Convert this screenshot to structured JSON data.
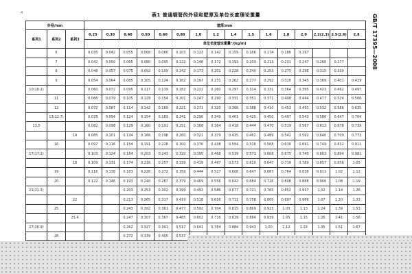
{
  "page_number": "4",
  "title": "表1  普通钢管的外径和壁厚及单位长度理论重量",
  "side_label": "GB/T 17395—2008",
  "headers": {
    "outer_diameter": "外径/mm",
    "series": [
      "系列1",
      "系列2",
      "系列3"
    ],
    "wall_thickness": "壁厚/mm",
    "unit_weight": "单位长度理论重量ᵃ/(kg/m)"
  },
  "thickness_columns": [
    "0.25",
    "0.30",
    "0.40",
    "0.50",
    "0.60",
    "0.80",
    "1.0",
    "1.2",
    "1.4",
    "1.5",
    "1.6",
    "1.8",
    "2.0",
    "2.2(2.3)",
    "2.5(2.6)",
    "2.8"
  ],
  "rows": [
    {
      "s1": "",
      "s2": "6",
      "s3": "",
      "v": [
        "0.035",
        "0.042",
        "0.055",
        "0.068",
        "0.080",
        "0.103",
        "0.123",
        "0.142",
        "0.159",
        "0.166",
        "0.174",
        "0.186",
        "0.197",
        "",
        "",
        ""
      ]
    },
    {
      "s1": "",
      "s2": "7",
      "s3": "",
      "v": [
        "0.042",
        "0.050",
        "0.065",
        "0.080",
        "0.095",
        "0.122",
        "0.148",
        "0.172",
        "0.193",
        "0.203",
        "0.213",
        "0.231",
        "0.247",
        "0.260",
        "0.277",
        ""
      ]
    },
    {
      "s1": "",
      "s2": "8",
      "s3": "",
      "v": [
        "0.048",
        "0.057",
        "0.075",
        "0.092",
        "0.109",
        "0.142",
        "0.173",
        "0.201",
        "0.228",
        "0.240",
        "0.253",
        "0.275",
        "0.296",
        "0.315",
        "0.339",
        ""
      ]
    },
    {
      "s1": "",
      "s2": "9",
      "s3": "",
      "v": [
        "0.054",
        "0.064",
        "0.085",
        "0.105",
        "0.124",
        "0.162",
        "0.197",
        "0.231",
        "0.262",
        "0.277",
        "0.292",
        "0.320",
        "0.345",
        "0.369",
        "0.401",
        "0.429"
      ]
    },
    {
      "s1": "10(10.2)",
      "s2": "",
      "s3": "",
      "v": [
        "0.060",
        "0.072",
        "0.095",
        "0.117",
        "0.139",
        "0.182",
        "0.222",
        "0.260",
        "0.297",
        "0.314",
        "0.331",
        "0.364",
        "0.395",
        "0.423",
        "0.462",
        "0.497"
      ]
    },
    {
      "s1": "",
      "s2": "11",
      "s3": "",
      "v": [
        "0.066",
        "0.079",
        "0.105",
        "0.129",
        "0.154",
        "0.201",
        "0.247",
        "0.290",
        "0.331",
        "0.351",
        "0.371",
        "0.408",
        "0.444",
        "0.477",
        "0.524",
        "0.566"
      ]
    },
    {
      "s1": "",
      "s2": "12",
      "s3": "",
      "v": [
        "0.072",
        "0.087",
        "0.114",
        "0.142",
        "0.169",
        "0.221",
        "0.271",
        "0.320",
        "0.366",
        "0.388",
        "0.410",
        "0.453",
        "0.493",
        "0.532",
        "0.586",
        "0.635"
      ]
    },
    {
      "s1": "",
      "s2": "13(12.7)",
      "s3": "",
      "v": [
        "0.078",
        "0.094",
        "0.124",
        "0.154",
        "0.183",
        "0.241",
        "0.296",
        "0.349",
        "0.401",
        "0.425",
        "0.450",
        "0.497",
        "0.543",
        "0.586",
        "0.647",
        "0.704"
      ]
    },
    {
      "s1": "13.5",
      "s2": "",
      "s3": "",
      "v": [
        "0.082",
        "0.098",
        "0.129",
        "0.160",
        "0.191",
        "0.251",
        "0.308",
        "0.364",
        "0.418",
        "0.444",
        "0.470",
        "0.519",
        "0.567",
        "0.613",
        "0.678",
        "0.739"
      ]
    },
    {
      "s1": "",
      "s2": "",
      "s3": "14",
      "v": [
        "0.085",
        "0.101",
        "0.134",
        "0.166",
        "0.198",
        "0.260",
        "0.321",
        "0.379",
        "0.435",
        "0.462",
        "0.489",
        "0.542",
        "0.592",
        "0.640",
        "0.709",
        "0.773"
      ]
    },
    {
      "s1": "",
      "s2": "16",
      "s3": "",
      "v": [
        "0.097",
        "0.116",
        "0.154",
        "0.191",
        "0.228",
        "0.300",
        "0.370",
        "0.438",
        "0.504",
        "0.536",
        "0.568",
        "0.630",
        "0.691",
        "0.749",
        "0.832",
        "0.911"
      ]
    },
    {
      "s1": "17(17.2)",
      "s2": "",
      "s3": "",
      "v": [
        "0.103",
        "0.124",
        "0.164",
        "0.203",
        "0.243",
        "0.320",
        "0.395",
        "0.468",
        "0.539",
        "0.573",
        "0.608",
        "0.675",
        "0.740",
        "0.803",
        "0.894",
        "0.981"
      ]
    },
    {
      "s1": "",
      "s2": "",
      "s3": "18",
      "v": [
        "0.109",
        "0.131",
        "0.174",
        "0.216",
        "0.257",
        "0.339",
        "0.419",
        "0.497",
        "0.573",
        "0.610",
        "0.647",
        "0.719",
        "0.789",
        "0.857",
        "0.956",
        "1.05"
      ]
    },
    {
      "s1": "",
      "s2": "19",
      "s3": "",
      "v": [
        "0.116",
        "0.138",
        "0.183",
        "0.228",
        "0.272",
        "0.359",
        "0.444",
        "0.527",
        "0.608",
        "0.647",
        "0.687",
        "0.764",
        "0.838",
        "0.911",
        "1.02",
        "1.12"
      ]
    },
    {
      "s1": "",
      "s2": "20",
      "s3": "",
      "v": [
        "0.122",
        "0.146",
        "0.193",
        "0.240",
        "0.287",
        "0.379",
        "0.469",
        "0.556",
        "0.642",
        "0.684",
        "0.726",
        "0.808",
        "0.888",
        "0.966",
        "1.08",
        "1.19"
      ]
    },
    {
      "s1": "21(21.3)",
      "s2": "",
      "s3": "",
      "v": [
        "",
        "",
        "0.203",
        "0.253",
        "0.302",
        "0.399",
        "0.493",
        "0.586",
        "0.677",
        "0.721",
        "0.765",
        "0.852",
        "0.937",
        "1.02",
        "1.14",
        "1.26"
      ]
    },
    {
      "s1": "",
      "s2": "",
      "s3": "22",
      "v": [
        "",
        "",
        "0.213",
        "0.265",
        "0.317",
        "0.419",
        "0.518",
        "0.616",
        "0.711",
        "0.758",
        "0.805",
        "0.897",
        "0.986",
        "1.07",
        "1.20",
        "1.33"
      ]
    },
    {
      "s1": "",
      "s2": "25",
      "s3": "",
      "v": [
        "",
        "",
        "0.243",
        "0.302",
        "0.361",
        "0.477",
        "0.592",
        "0.704",
        "0.815",
        "0.869",
        "0.923",
        "1.03",
        "1.13",
        "1.24",
        "1.39",
        "1.53"
      ]
    },
    {
      "s1": "",
      "s2": "",
      "s3": "25.4",
      "v": [
        "",
        "",
        "0.247",
        "0.307",
        "0.367",
        "0.485",
        "0.602",
        "0.716",
        "0.829",
        "0.884",
        "0.939",
        "1.05",
        "1.15",
        "1.26",
        "1.41",
        "1.56"
      ]
    },
    {
      "s1": "27(26.9)",
      "s2": "",
      "s3": "",
      "v": [
        "",
        "",
        "0.262",
        "0.327",
        "0.391",
        "0.517",
        "0.641",
        "0.764",
        "0.884",
        "0.943",
        "1.00",
        "1.12",
        "1.23",
        "1.35",
        "1.51",
        "1.67"
      ]
    },
    {
      "s1": "",
      "s2": "28",
      "s3": "",
      "v": [
        "",
        "",
        "0.272",
        "0.339",
        "0.405",
        "0.537",
        "",
        "",
        "",
        "",
        "",
        "",
        "",
        "",
        "",
        ""
      ]
    }
  ]
}
